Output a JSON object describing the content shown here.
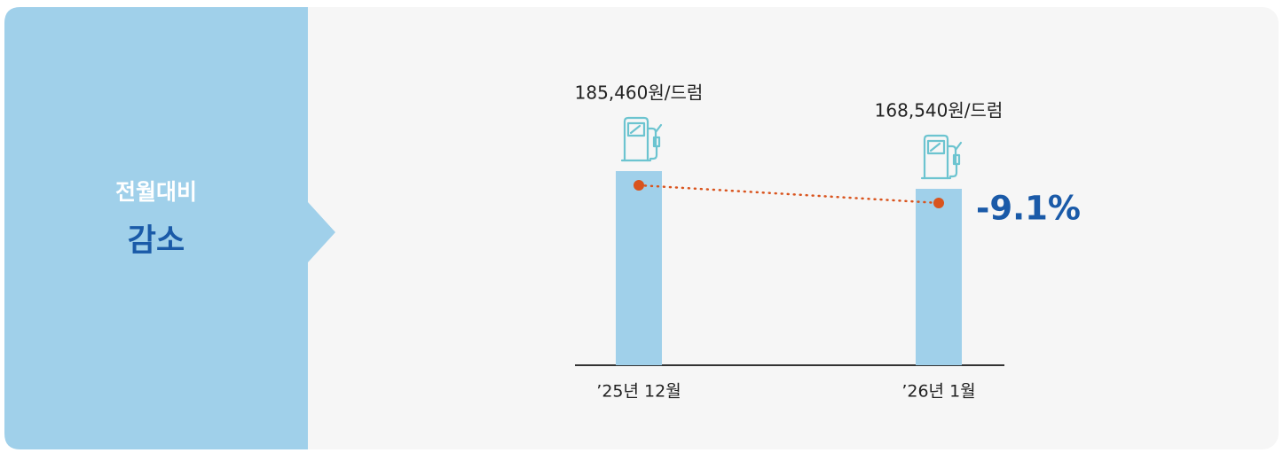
{
  "chart_data": {
    "type": "bar",
    "panel_title": "전월대비",
    "panel_headline": "감소",
    "categories": [
      "’25년 12월",
      "’26년 1월"
    ],
    "values": [
      185460,
      168540
    ],
    "value_labels": [
      "185,460원/드럼",
      "168,540원/드럼"
    ],
    "color": "#a0d0ea",
    "line_color": "#d9541e",
    "change_label": "-9.1%"
  }
}
